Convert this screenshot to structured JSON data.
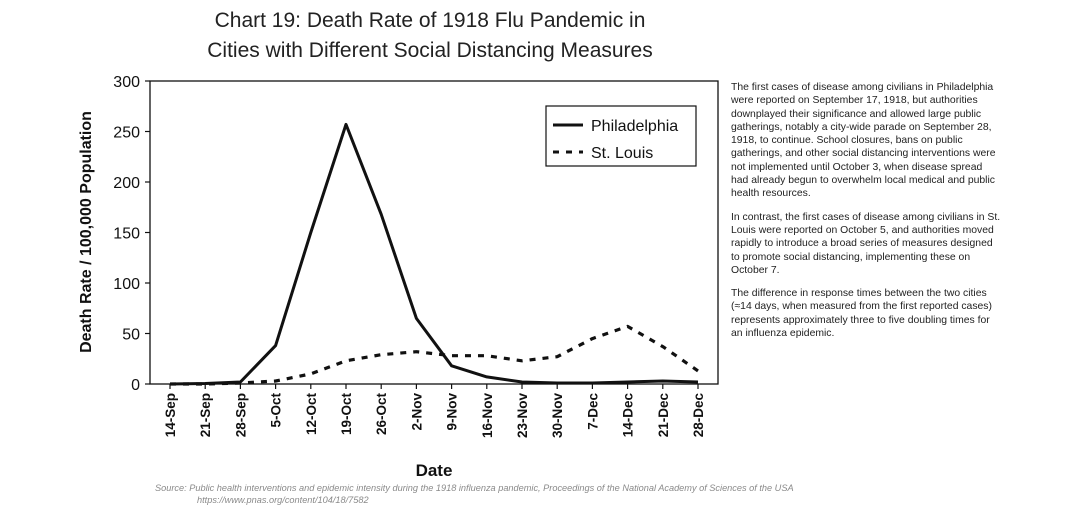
{
  "chart_data": {
    "type": "line",
    "title_line1": "Chart 19: Death Rate of 1918 Flu Pandemic in",
    "title_line2": "Cities with Different Social Distancing Measures",
    "xlabel": "Date",
    "ylabel": "Death Rate / 100,000 Population",
    "categories": [
      "14-Sep",
      "21-Sep",
      "28-Sep",
      "5-Oct",
      "12-Oct",
      "19-Oct",
      "26-Oct",
      "2-Nov",
      "9-Nov",
      "16-Nov",
      "23-Nov",
      "30-Nov",
      "7-Dec",
      "14-Dec",
      "21-Dec",
      "28-Dec"
    ],
    "yticks": [
      0,
      50,
      100,
      150,
      200,
      250,
      300
    ],
    "ylim": [
      0,
      300
    ],
    "legend_position": "top-right",
    "series": [
      {
        "name": "Philadelphia",
        "style": "solid",
        "color": "#111111",
        "values": [
          0,
          0.5,
          2,
          38,
          150,
          257,
          168,
          65,
          18,
          7,
          2,
          1,
          1,
          2,
          3,
          2
        ]
      },
      {
        "name": "St. Louis",
        "style": "dotted",
        "color": "#111111",
        "values": [
          0,
          0,
          1,
          3,
          10,
          23,
          29,
          32,
          28,
          28,
          23,
          27,
          45,
          57,
          37,
          13
        ]
      }
    ]
  },
  "notes": {
    "p1": "The first cases of disease among civilians in Philadelphia were reported on September 17, 1918, but authorities downplayed their significance and allowed large public gatherings, notably a city-wide parade on September 28, 1918, to continue. School closures, bans on public gatherings, and other social distancing interventions were not implemented until October 3, when disease spread had already begun to overwhelm local medical and public health resources.",
    "p2": "In contrast, the first cases of disease among civilians in St. Louis were reported on October 5, and authorities moved rapidly to introduce a broad series of measures designed to promote social distancing, implementing these on October 7.",
    "p3": "The difference in response times between the two cities (≈14 days, when measured from the first reported cases) represents approximately three to five doubling times for an influenza epidemic."
  },
  "source": {
    "line1": "Source: Public health interventions and epidemic intensity during the 1918 influenza pandemic, Proceedings of the National Academy of Sciences of the USA",
    "line2": "https://www.pnas.org/content/104/18/7582"
  }
}
